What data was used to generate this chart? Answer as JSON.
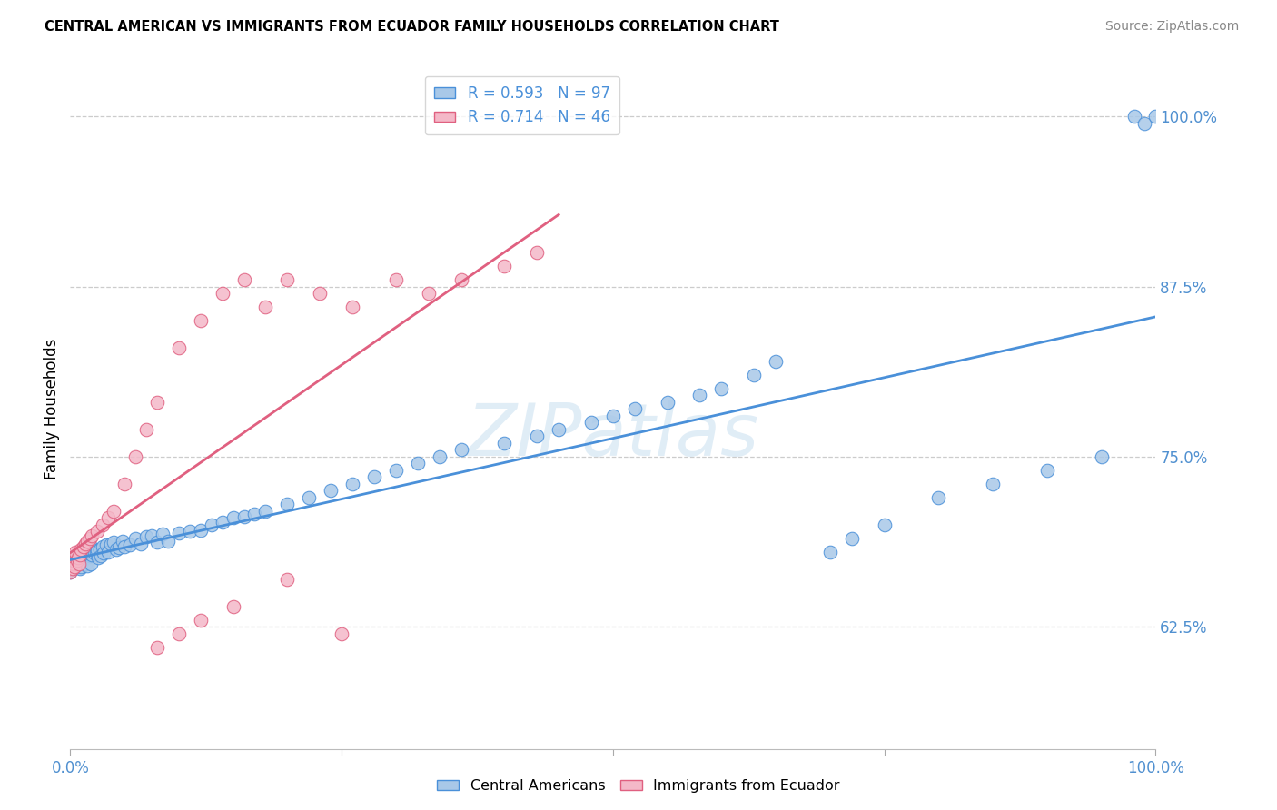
{
  "title": "CENTRAL AMERICAN VS IMMIGRANTS FROM ECUADOR FAMILY HOUSEHOLDS CORRELATION CHART",
  "source": "Source: ZipAtlas.com",
  "ylabel": "Family Households",
  "watermark": "ZIPatlas",
  "legend_label_blue": "Central Americans",
  "legend_label_pink": "Immigrants from Ecuador",
  "r_blue": 0.593,
  "n_blue": 97,
  "r_pink": 0.714,
  "n_pink": 46,
  "color_blue": "#a8c8e8",
  "color_pink": "#f4b8c8",
  "line_color_blue": "#4a90d9",
  "line_color_pink": "#e06080",
  "tick_color": "#5090d0",
  "x_min": 0.0,
  "x_max": 1.0,
  "y_min": 0.535,
  "y_max": 1.035,
  "right_yticks": [
    0.625,
    0.75,
    0.875,
    1.0
  ],
  "right_yticklabels": [
    "62.5%",
    "75.0%",
    "87.5%",
    "100.0%"
  ],
  "blue_x": [
    0.0,
    0.0,
    0.0,
    0.0,
    0.001,
    0.001,
    0.002,
    0.002,
    0.003,
    0.003,
    0.004,
    0.004,
    0.005,
    0.005,
    0.006,
    0.006,
    0.007,
    0.008,
    0.008,
    0.009,
    0.01,
    0.01,
    0.01,
    0.012,
    0.013,
    0.014,
    0.015,
    0.015,
    0.016,
    0.017,
    0.018,
    0.019,
    0.02,
    0.02,
    0.022,
    0.024,
    0.025,
    0.026,
    0.027,
    0.028,
    0.03,
    0.031,
    0.033,
    0.035,
    0.037,
    0.04,
    0.042,
    0.045,
    0.048,
    0.05,
    0.055,
    0.06,
    0.065,
    0.07,
    0.075,
    0.08,
    0.085,
    0.09,
    0.1,
    0.11,
    0.12,
    0.13,
    0.14,
    0.15,
    0.16,
    0.17,
    0.18,
    0.2,
    0.22,
    0.24,
    0.26,
    0.28,
    0.3,
    0.32,
    0.34,
    0.36,
    0.4,
    0.43,
    0.45,
    0.48,
    0.5,
    0.52,
    0.55,
    0.58,
    0.6,
    0.63,
    0.65,
    0.7,
    0.72,
    0.75,
    0.8,
    0.85,
    0.9,
    0.95,
    0.98,
    0.99,
    1.0
  ],
  "blue_y": [
    0.665,
    0.67,
    0.672,
    0.668,
    0.671,
    0.667,
    0.673,
    0.669,
    0.674,
    0.668,
    0.675,
    0.67,
    0.676,
    0.669,
    0.672,
    0.677,
    0.671,
    0.678,
    0.673,
    0.668,
    0.679,
    0.674,
    0.669,
    0.68,
    0.675,
    0.671,
    0.681,
    0.676,
    0.67,
    0.682,
    0.677,
    0.671,
    0.683,
    0.678,
    0.679,
    0.68,
    0.681,
    0.676,
    0.682,
    0.677,
    0.684,
    0.679,
    0.685,
    0.68,
    0.686,
    0.687,
    0.682,
    0.683,
    0.688,
    0.684,
    0.685,
    0.69,
    0.686,
    0.691,
    0.692,
    0.687,
    0.693,
    0.688,
    0.694,
    0.695,
    0.696,
    0.7,
    0.702,
    0.705,
    0.706,
    0.708,
    0.71,
    0.715,
    0.72,
    0.725,
    0.73,
    0.735,
    0.74,
    0.745,
    0.75,
    0.755,
    0.76,
    0.765,
    0.77,
    0.775,
    0.78,
    0.785,
    0.79,
    0.795,
    0.8,
    0.81,
    0.82,
    0.68,
    0.69,
    0.7,
    0.72,
    0.73,
    0.74,
    0.75,
    1.0,
    0.995,
    1.0
  ],
  "pink_x": [
    0.0,
    0.0,
    0.001,
    0.002,
    0.002,
    0.003,
    0.004,
    0.004,
    0.005,
    0.006,
    0.007,
    0.008,
    0.009,
    0.01,
    0.012,
    0.014,
    0.016,
    0.018,
    0.02,
    0.025,
    0.03,
    0.035,
    0.04,
    0.05,
    0.06,
    0.07,
    0.08,
    0.1,
    0.12,
    0.14,
    0.16,
    0.18,
    0.2,
    0.23,
    0.26,
    0.3,
    0.33,
    0.36,
    0.4,
    0.43,
    0.1,
    0.15,
    0.2,
    0.25,
    0.12,
    0.08
  ],
  "pink_y": [
    0.67,
    0.665,
    0.672,
    0.675,
    0.668,
    0.671,
    0.673,
    0.669,
    0.68,
    0.674,
    0.676,
    0.671,
    0.678,
    0.682,
    0.684,
    0.686,
    0.688,
    0.69,
    0.692,
    0.695,
    0.7,
    0.705,
    0.71,
    0.73,
    0.75,
    0.77,
    0.79,
    0.83,
    0.85,
    0.87,
    0.88,
    0.86,
    0.88,
    0.87,
    0.86,
    0.88,
    0.87,
    0.88,
    0.89,
    0.9,
    0.62,
    0.64,
    0.66,
    0.62,
    0.63,
    0.61
  ]
}
